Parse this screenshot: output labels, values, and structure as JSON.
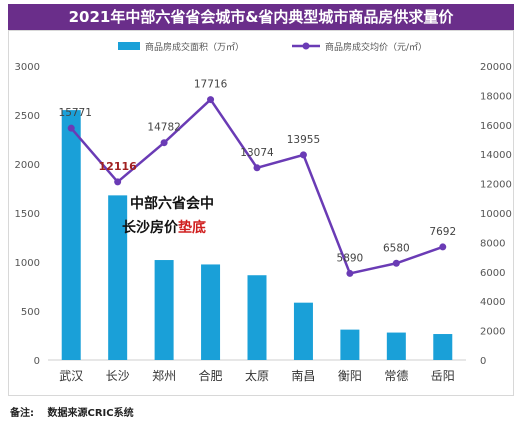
{
  "footer": {
    "label": "备注:",
    "text": "数据来源CRIC系统"
  },
  "chart_data": {
    "type": "bar",
    "title": "2021年中部六省省会城市&省内典型城市商品房供求量价",
    "categories": [
      "武汉",
      "长沙",
      "郑州",
      "合肥",
      "太原",
      "南昌",
      "衡阳",
      "常德",
      "岳阳"
    ],
    "series": [
      {
        "name": "商品房成交面积（万㎡）",
        "type": "bar",
        "axis": "left",
        "color": "#1aa0d8",
        "values": [
          2550,
          1680,
          1020,
          975,
          865,
          585,
          310,
          280,
          265
        ]
      },
      {
        "name": "商品房成交均价（元/㎡）",
        "type": "line",
        "axis": "right",
        "color": "#6a3bb5",
        "values": [
          15771,
          12116,
          14782,
          17716,
          13074,
          13955,
          5890,
          6580,
          7692
        ],
        "labels": [
          "15771",
          "12116",
          "14782",
          "17716",
          "13074",
          "13955",
          "5890",
          "6580",
          "7692"
        ]
      }
    ],
    "y_left": {
      "min": 0,
      "max": 3000,
      "ticks": [
        "0",
        "500",
        "1000",
        "1500",
        "2000",
        "2500",
        "3000"
      ]
    },
    "y_right": {
      "min": 0,
      "max": 20000,
      "ticks": [
        "0",
        "2000",
        "4000",
        "6000",
        "8000",
        "10000",
        "12000",
        "14000",
        "16000",
        "18000",
        "20000"
      ]
    },
    "legend_position": "top",
    "annotation": {
      "line1": "中部六省会中",
      "line2_prefix": "长沙房价",
      "line2_highlight": "垫底",
      "highlight_color": "#d02020"
    },
    "highlight_label_color": "#a02020",
    "grid": false
  }
}
